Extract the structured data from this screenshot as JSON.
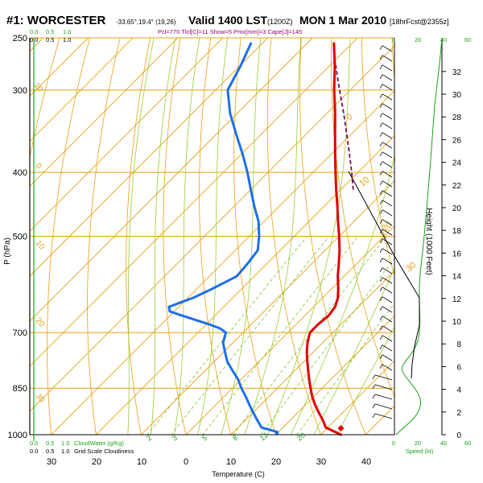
{
  "header": {
    "station": "#1: WORCESTER",
    "coords": "-33.65°,19.4° (19,26)",
    "valid_label": "Valid 1400 LST",
    "valid_zulu": "(1200Z)",
    "date_label": "MON 1 Mar 2010",
    "forecast_label": "[18hrFcst@2355z]",
    "parcel_info": "Pcl=770 Tlcl[C]=11 Show=5 Pmx[mm]=3 Cape[J]=145"
  },
  "colors": {
    "temperature": "#e00000",
    "dewpoint": "#1e6fe8",
    "parcel": "#7a0a55",
    "isotherm_isobar": "#e8a010",
    "dry_adiabat": "#e8a010",
    "moist_adiabat": "#9acd32",
    "mixing_ratio": "#7cc32a",
    "wind_speed": "#1aa31a",
    "axis": "#000000"
  },
  "chart_data": {
    "type": "line",
    "title": "#1: WORCESTER",
    "xlabel": "Temperature (C)",
    "ylabel": "P (hPa)",
    "height_axis_label": "Height (1000 Feet)",
    "pressure_ticks": [
      1000,
      850,
      700,
      500,
      400,
      300,
      250
    ],
    "temperature_ticks": [
      30,
      20,
      10,
      0,
      10,
      20,
      30,
      40
    ],
    "height_ticks": [
      0,
      2,
      4,
      6,
      8,
      10,
      12,
      14,
      16,
      18,
      20,
      22,
      24,
      26,
      28,
      30,
      32
    ],
    "cloud_water_label": "CloudWater (g/Kg)",
    "cloud_water_ticks": [
      "0.0",
      "0.5",
      "1.0"
    ],
    "grid_cloud_label": "Grid Scale Cloudiness",
    "grid_cloud_ticks": [
      "0.0",
      "0.5",
      "1.0"
    ],
    "mixing_ratio_labels": [
      "2",
      "3",
      "5",
      "8",
      "12",
      "20"
    ],
    "isotherm_labels": [
      "0",
      "10",
      "20",
      "30"
    ],
    "dry_adiabat_labels": [
      "10",
      "0",
      "10",
      "20",
      "30"
    ],
    "speed_axis_label": "Speed (kt)",
    "speed_ticks": [
      "0",
      "20",
      "40",
      "60"
    ],
    "series": [
      {
        "name": "temperature",
        "p": [
          1000,
          975,
          950,
          925,
          900,
          875,
          850,
          825,
          800,
          775,
          750,
          725,
          700,
          680,
          660,
          640,
          620,
          600,
          575,
          550,
          525,
          500,
          475,
          450,
          425,
          400,
          375,
          350,
          325,
          300,
          275,
          255
        ],
        "t": [
          34.5,
          29.5,
          27.2,
          24.6,
          22.0,
          19.6,
          17.4,
          15.2,
          13.0,
          10.8,
          8.6,
          6.6,
          4.9,
          4.9,
          5.3,
          4.8,
          3.4,
          1.4,
          -1.4,
          -4.0,
          -6.8,
          -10.0,
          -13.5,
          -17.1,
          -21.0,
          -25.0,
          -29.2,
          -33.6,
          -38.3,
          -43.6,
          -49.0,
          -54.0
        ]
      },
      {
        "name": "dewpoint",
        "p": [
          990,
          975,
          950,
          925,
          900,
          875,
          850,
          825,
          800,
          775,
          750,
          725,
          700,
          690,
          680,
          670,
          660,
          650,
          640,
          630,
          620,
          600,
          575,
          550,
          525,
          500,
          475,
          450,
          425,
          400,
          375,
          350,
          325,
          300,
          275,
          255
        ],
        "t": [
          19.6,
          15.2,
          12.6,
          10.0,
          7.4,
          4.8,
          2.0,
          -0.6,
          -3.8,
          -7.0,
          -9.6,
          -12.2,
          -13.8,
          -16.0,
          -19.4,
          -23.3,
          -27.2,
          -31.0,
          -32.2,
          -30.6,
          -28.8,
          -26.5,
          -23.9,
          -24.3,
          -25.0,
          -27.8,
          -31.2,
          -35.6,
          -40.0,
          -44.6,
          -49.8,
          -55.6,
          -61.7,
          -67.3,
          -69.9,
          -72.5
        ]
      },
      {
        "name": "parcel",
        "p": [
          425,
          400,
          375,
          350,
          325,
          300,
          275
        ],
        "t": [
          -17.2,
          -21.4,
          -26.0,
          -31.0,
          -36.4,
          -42.4,
          -48.8
        ]
      }
    ],
    "surface_markers": {
      "temperature": 34.5,
      "dewpoint": 19.6
    }
  }
}
